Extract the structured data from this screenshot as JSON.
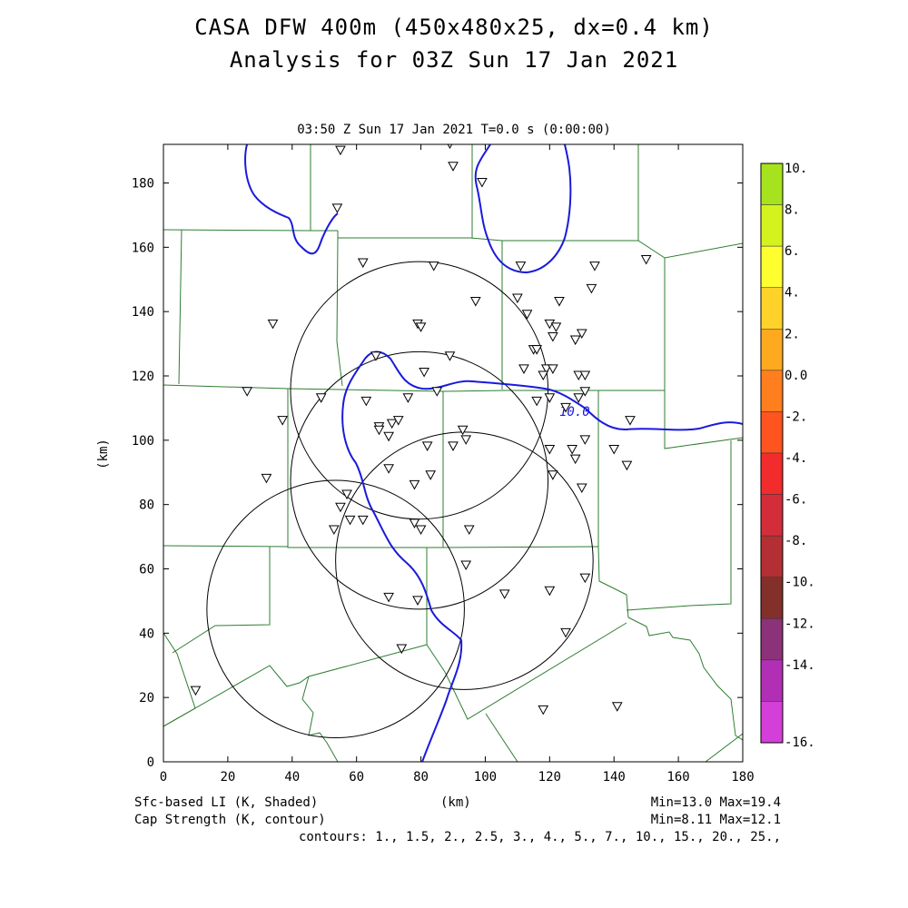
{
  "header": {
    "title_line1": "CASA DFW 400m (450x480x25, dx=0.4 km)",
    "title_line2": "Analysis for 03Z Sun 17 Jan 2021",
    "subtitle": "03:50 Z Sun 17 Jan 2021    T=0.0 s (0:00:00)"
  },
  "footer": {
    "left_line1": "Sfc-based LI (K, Shaded)",
    "left_line2": "Cap Strength (K, contour)",
    "center_label": "(km)",
    "right_line1": "Min=13.0 Max=19.4",
    "right_line2": "Min=8.11 Max=12.1",
    "contours": "contours: 1., 1.5, 2., 2.5, 3., 4., 5., 7., 10., 15., 20., 25.,"
  },
  "colors": {
    "counties": "#2e7d32",
    "contour": "#1a1adc",
    "rings": "#000000"
  },
  "chart_data": {
    "type": "contour-map",
    "xlabel": "(km)",
    "ylabel": "(km)",
    "xlim": [
      0,
      180
    ],
    "ylim": [
      0,
      192
    ],
    "xticks": [
      "0",
      "20",
      "40",
      "60",
      "80",
      "100",
      "120",
      "140",
      "160",
      "180"
    ],
    "yticks": [
      "0",
      "20",
      "40",
      "60",
      "80",
      "100",
      "120",
      "140",
      "160",
      "180"
    ],
    "contour_label": "10.0",
    "colorbar": {
      "labels": [
        "10.",
        "8.",
        "6.",
        "4.",
        "2.",
        "0.0",
        "-2.",
        "-4.",
        "-6.",
        "-8.",
        "-10.",
        "-12.",
        "-14.",
        "-16."
      ],
      "colors": [
        "#a6e31e",
        "#d4f21e",
        "#ffff30",
        "#ffd22a",
        "#ffaa1e",
        "#ff7e1e",
        "#ff5420",
        "#f22c2c",
        "#d42d3a",
        "#b42f33",
        "#832f2a",
        "#8c3278",
        "#b02fb4",
        "#d43fd9"
      ]
    },
    "radar_rings": [
      {
        "cx": 79.5,
        "cy": 115.5,
        "r": 40
      },
      {
        "cx": 79.5,
        "cy": 87.5,
        "r": 40
      },
      {
        "cx": 93.5,
        "cy": 62.5,
        "r": 40
      },
      {
        "cx": 53.5,
        "cy": 47.5,
        "r": 40
      }
    ],
    "stations": [
      [
        55,
        190
      ],
      [
        89,
        192
      ],
      [
        90,
        185
      ],
      [
        99,
        180
      ],
      [
        54,
        172
      ],
      [
        62,
        155
      ],
      [
        84,
        154
      ],
      [
        111,
        154
      ],
      [
        134,
        154
      ],
      [
        150,
        156
      ],
      [
        133,
        147
      ],
      [
        97,
        143
      ],
      [
        110,
        144
      ],
      [
        123,
        143
      ],
      [
        113,
        139
      ],
      [
        34,
        136
      ],
      [
        79,
        136
      ],
      [
        80,
        135
      ],
      [
        120,
        136
      ],
      [
        122,
        135
      ],
      [
        121,
        132
      ],
      [
        128,
        131
      ],
      [
        130,
        133
      ],
      [
        115,
        128
      ],
      [
        116,
        128
      ],
      [
        66,
        126
      ],
      [
        89,
        126
      ],
      [
        81,
        121
      ],
      [
        112,
        122
      ],
      [
        119,
        122
      ],
      [
        121,
        122
      ],
      [
        118,
        120
      ],
      [
        129,
        120
      ],
      [
        131,
        120
      ],
      [
        85,
        115
      ],
      [
        131,
        115
      ],
      [
        26,
        115
      ],
      [
        49,
        113
      ],
      [
        63,
        112
      ],
      [
        76,
        113
      ],
      [
        116,
        112
      ],
      [
        120,
        113
      ],
      [
        129,
        113
      ],
      [
        125,
        110
      ],
      [
        37,
        106
      ],
      [
        67,
        104
      ],
      [
        71,
        105
      ],
      [
        73,
        106
      ],
      [
        145,
        106
      ],
      [
        67,
        103
      ],
      [
        70,
        101
      ],
      [
        93,
        103
      ],
      [
        94,
        100
      ],
      [
        131,
        100
      ],
      [
        127,
        97
      ],
      [
        82,
        98
      ],
      [
        90,
        98
      ],
      [
        120,
        97
      ],
      [
        128,
        94
      ],
      [
        140,
        97
      ],
      [
        32,
        88
      ],
      [
        70,
        91
      ],
      [
        83,
        89
      ],
      [
        121,
        89
      ],
      [
        130,
        85
      ],
      [
        144,
        92
      ],
      [
        78,
        86
      ],
      [
        57,
        83
      ],
      [
        55,
        79
      ],
      [
        58,
        75
      ],
      [
        62,
        75
      ],
      [
        53,
        72
      ],
      [
        78,
        74
      ],
      [
        80,
        72
      ],
      [
        95,
        72
      ],
      [
        94,
        61
      ],
      [
        131,
        57
      ],
      [
        120,
        53
      ],
      [
        70,
        51
      ],
      [
        79,
        50
      ],
      [
        106,
        52
      ],
      [
        125,
        40
      ],
      [
        74,
        35
      ],
      [
        10,
        22
      ],
      [
        118,
        16
      ],
      [
        141,
        17
      ]
    ]
  }
}
